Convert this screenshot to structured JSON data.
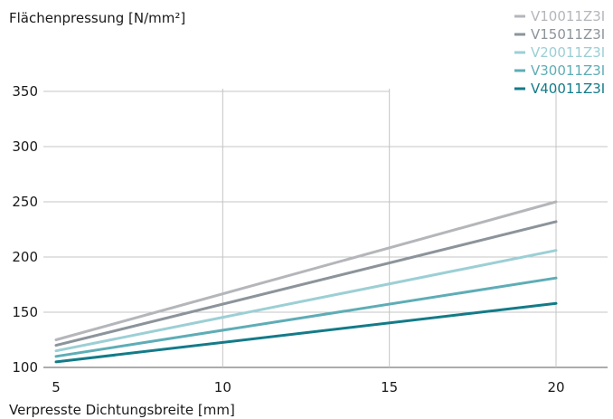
{
  "chart_data": {
    "type": "line",
    "title": "",
    "ylabel": "Flächenpressung [N/mm²]",
    "xlabel": "Verpresste Dichtungsbreite [mm]",
    "xlim": [
      5,
      20
    ],
    "ylim": [
      100,
      350
    ],
    "x_ticks": [
      "5",
      "10",
      "15",
      "20"
    ],
    "y_ticks": [
      "100",
      "150",
      "200",
      "250",
      "300",
      "350"
    ],
    "grid": true,
    "legend_position": "top-right",
    "x": [
      5,
      20
    ],
    "series": [
      {
        "name": "V10011Z3I",
        "color": "#b4b6ba",
        "values": [
          125,
          250
        ]
      },
      {
        "name": "V15011Z3I",
        "color": "#8c949b",
        "values": [
          120,
          232
        ]
      },
      {
        "name": "V20011Z3I",
        "color": "#9ccfd5",
        "values": [
          115,
          206
        ]
      },
      {
        "name": "V30011Z3I",
        "color": "#5eadb6",
        "values": [
          110,
          181
        ]
      },
      {
        "name": "V40011Z3I",
        "color": "#137b88",
        "values": [
          105,
          158
        ]
      }
    ]
  }
}
